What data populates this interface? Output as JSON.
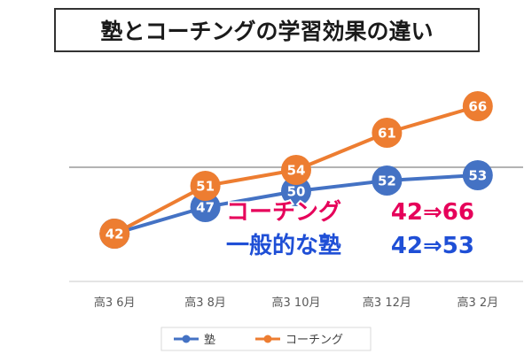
{
  "chart_data": {
    "type": "line",
    "title": "塾とコーチングの学習効果の違い",
    "categories": [
      "高3 6月",
      "高3 8月",
      "高3 10月",
      "高3 12月",
      "高3 2月"
    ],
    "series": [
      {
        "name": "塾",
        "values": [
          42,
          47,
          50,
          52,
          53
        ],
        "color": "#4472C4"
      },
      {
        "name": "コーチング",
        "values": [
          42,
          51,
          54,
          61,
          66
        ],
        "color": "#ED7D31"
      }
    ],
    "ylim": [
      33,
      76
    ],
    "grid": true,
    "legend": "bottom",
    "annotations": [
      {
        "label": "コーチング",
        "value": "42⇒66",
        "color": "#E6005A"
      },
      {
        "label": "一般的な塾",
        "value": "42⇒53",
        "color": "#1F4FD6"
      }
    ],
    "colors": {
      "gridline": "#9a9a9a",
      "axis": "#c8c8c8",
      "tick_text": "#595959",
      "label_text": "#ffffff",
      "background": "#ffffff"
    }
  }
}
